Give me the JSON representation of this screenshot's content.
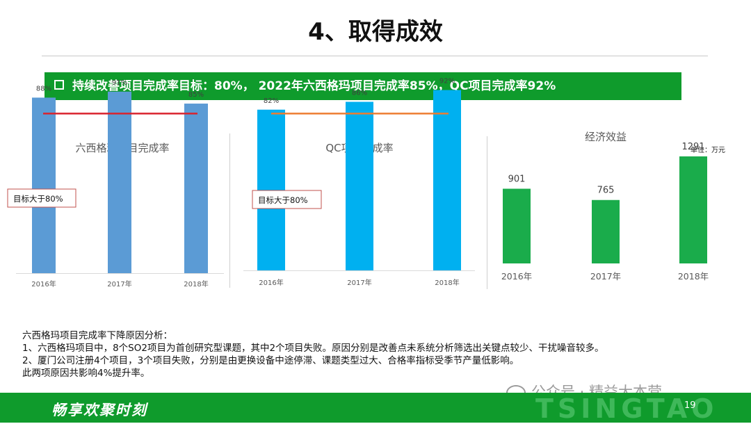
{
  "title": "4、取得成效",
  "banner": {
    "text": "持续改善项目完成率目标：80%， 2022年六西格玛项目完成率85%，QC项目完成率92%"
  },
  "chart_data": [
    {
      "type": "bar",
      "title": "六西格玛项目完成率",
      "categories": [
        "2016年",
        "2017年",
        "2018年"
      ],
      "values": [
        88,
        91,
        85
      ],
      "data_labels": [
        "88%",
        "91%",
        "85%"
      ],
      "target": {
        "value": 80,
        "label": "目标大于80%",
        "color": "#d9232d"
      },
      "bar_color": "#5b9bd5",
      "ylim": [
        0,
        100
      ]
    },
    {
      "type": "bar",
      "title": "QC项目完成率",
      "categories": [
        "2016年",
        "2017年",
        "2018年"
      ],
      "values": [
        82,
        86,
        92
      ],
      "data_labels": [
        "82%",
        "86%",
        "92%"
      ],
      "target": {
        "value": 80,
        "label": "目标大于80%",
        "color": "#ed7d31"
      },
      "bar_color": "#00b0f0",
      "ylim": [
        0,
        100
      ]
    },
    {
      "type": "bar",
      "title": "经济效益",
      "unit": "单位：万元",
      "categories": [
        "2016年",
        "2017年",
        "2018年"
      ],
      "values": [
        901,
        765,
        1291
      ],
      "data_labels": [
        "901",
        "765",
        "1291"
      ],
      "bar_color": "#1aac4b",
      "ylim": [
        0,
        1400
      ]
    }
  ],
  "analysis": {
    "heading": "六西格玛项目完成率下降原因分析：",
    "lines": [
      "1、六西格玛项目中，8个SO2项目为首创研究型课题，其中2个项目失败。原因分别是改善点未系统分析筛选出关键点较少、干扰噪音较多。",
      "2、厦门公司注册4个项目，3个项目失败，分别是由更换设备中途停滞、课题类型过大、合格率指标受季节产量低影响。",
      "此两项原因共影响4%提升率。"
    ]
  },
  "footer": {
    "slogan": "畅享欢聚时刻",
    "brand": "TSINGTAO",
    "page": "19"
  },
  "watermark": {
    "text": "公众号 · 精益大本营"
  },
  "colors": {
    "brand_green": "#0f9b2c"
  }
}
